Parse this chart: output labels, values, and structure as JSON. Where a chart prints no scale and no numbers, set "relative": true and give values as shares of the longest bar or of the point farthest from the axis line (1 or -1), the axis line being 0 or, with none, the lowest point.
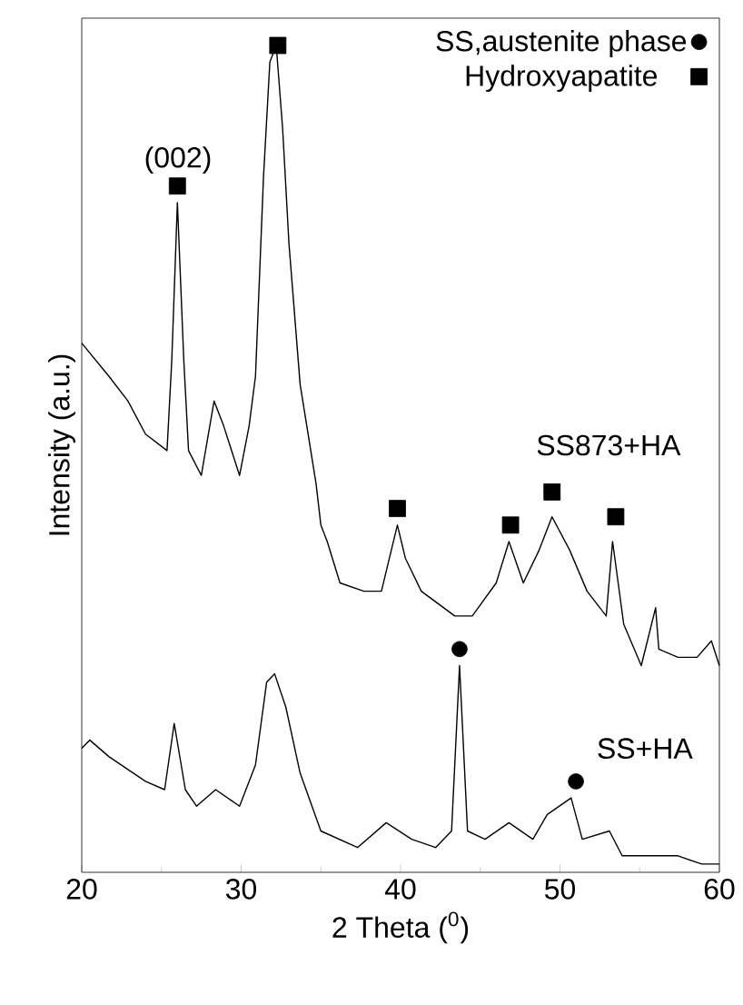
{
  "chart_data": {
    "type": "line",
    "relative": true,
    "xlabel": "2 Theta ($^{0}$)",
    "ylabel": "Intensity (a.u.)",
    "xlim": [
      20,
      60
    ],
    "xticks": [
      20,
      30,
      40,
      50,
      60
    ],
    "legend": "top right",
    "grid": false,
    "series": [
      {
        "color": "#000000",
        "marker": "none",
        "x": [
          20.0,
          21.7,
          22.9,
          24.0,
          25.35,
          25.65,
          26.0,
          26.4,
          26.7,
          27.5,
          28.3,
          28.9,
          29.9,
          30.5,
          30.9,
          31.4,
          31.8,
          32.2,
          32.6,
          33.0,
          33.7,
          34.7,
          35.0,
          35.4,
          36.2,
          37.7,
          38.8,
          39.8,
          40.3,
          41.3,
          43.4,
          44.5,
          46.0,
          46.8,
          47.7,
          48.7,
          49.5,
          50.6,
          51.7,
          52.9,
          53.3,
          54.0,
          55.1,
          56.0,
          56.2,
          57.4,
          58.6,
          59.5,
          60.0
        ],
        "values": [
          0.64,
          0.6,
          0.57,
          0.53,
          0.51,
          0.62,
          0.81,
          0.62,
          0.51,
          0.48,
          0.57,
          0.54,
          0.48,
          0.54,
          0.6,
          0.84,
          0.98,
          1.0,
          0.9,
          0.76,
          0.59,
          0.47,
          0.42,
          0.4,
          0.35,
          0.34,
          0.34,
          0.42,
          0.38,
          0.34,
          0.31,
          0.31,
          0.35,
          0.4,
          0.35,
          0.39,
          0.43,
          0.39,
          0.34,
          0.31,
          0.4,
          0.3,
          0.25,
          0.32,
          0.27,
          0.26,
          0.26,
          0.28,
          0.25
        ]
      },
      {
        "color": "#000000",
        "marker": "none",
        "x": [
          20.0,
          20.5,
          21.7,
          24.0,
          25.2,
          25.8,
          26.5,
          27.2,
          28.4,
          29.9,
          30.9,
          31.6,
          32.1,
          32.8,
          33.7,
          35.0,
          37.3,
          39.1,
          40.7,
          42.2,
          43.2,
          43.7,
          44.2,
          45.3,
          46.8,
          48.3,
          49.2,
          50.7,
          51.4,
          53.1,
          53.9,
          57.4,
          58.9,
          60.0
        ],
        "values": [
          0.15,
          0.16,
          0.14,
          0.11,
          0.1,
          0.18,
          0.1,
          0.08,
          0.1,
          0.08,
          0.13,
          0.23,
          0.24,
          0.2,
          0.12,
          0.05,
          0.03,
          0.06,
          0.04,
          0.03,
          0.05,
          0.25,
          0.05,
          0.04,
          0.06,
          0.04,
          0.07,
          0.09,
          0.04,
          0.05,
          0.02,
          0.02,
          0.01,
          0.01
        ]
      },
      {
        "type": "scatter",
        "name": "SS,austenite phase",
        "color": "#000000",
        "marker": "circle",
        "x": [
          43.7,
          51.0
        ],
        "values": [
          0.27,
          0.11
        ]
      },
      {
        "type": "scatter",
        "name": "Hydroxyapatite",
        "color": "#000000",
        "marker": "square",
        "x": [
          26.0,
          32.3,
          39.8,
          46.9,
          49.5,
          53.5
        ],
        "values": [
          0.83,
          1.0,
          0.44,
          0.42,
          0.46,
          0.43
        ]
      }
    ],
    "annotations": [
      "(002)",
      "SS873+HA",
      "SS+HA"
    ]
  }
}
